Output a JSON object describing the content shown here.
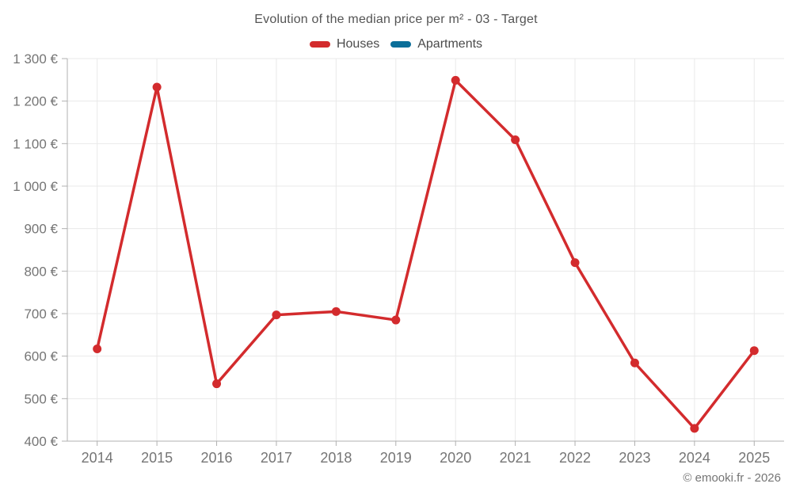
{
  "title": "Evolution of the median price per m² - 03 - Target",
  "footer": {
    "copyright": "© emooki.fr - 2026"
  },
  "colors": {
    "grid": "#e9e9e9",
    "axis": "#b0b0b0",
    "tick_label": "#757575",
    "title_text": "#545454",
    "legend_text": "#4a4a4a",
    "background": "#ffffff"
  },
  "chart_data": {
    "type": "line",
    "title": "Evolution of the median price per m² - 03 - Target",
    "x": [
      2014,
      2015,
      2016,
      2017,
      2018,
      2019,
      2020,
      2021,
      2022,
      2023,
      2024,
      2025
    ],
    "series": [
      {
        "name": "Houses",
        "color": "#d32b2d",
        "values": [
          617,
          1233,
          535,
          697,
          705,
          685,
          1249,
          1109,
          820,
          584,
          430,
          613
        ]
      },
      {
        "name": "Apartments",
        "color": "#0b6e99",
        "values": []
      }
    ],
    "xlabel": "",
    "ylabel": "",
    "ylim": [
      400,
      1300
    ],
    "ytick_step": 100,
    "ytick_suffix": " €",
    "grid": true,
    "legend_position": "top",
    "marker": "circle"
  }
}
